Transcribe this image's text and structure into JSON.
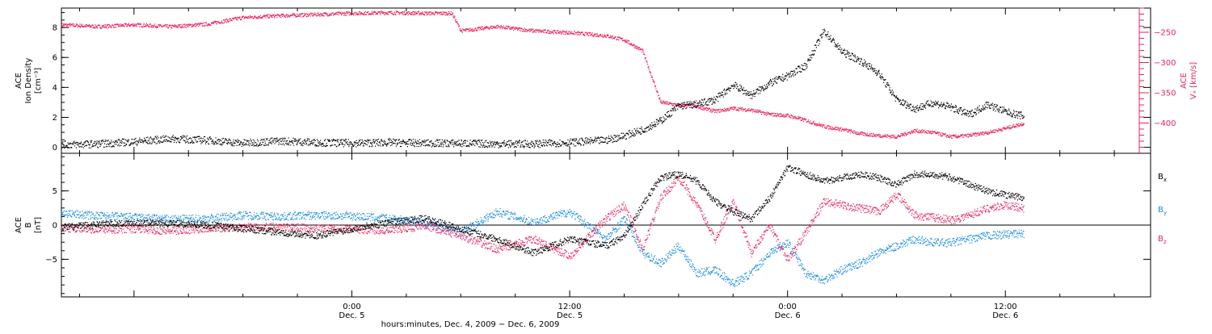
{
  "colors": {
    "black": "#000000",
    "pink": "#e8245c",
    "blue": "#1a8ce0"
  },
  "chart_data": {
    "type": "scatter",
    "xlabel": "hours:minutes, Dec.  4, 2009  −  Dec.  6, 2009",
    "x_range_hours": [
      -16,
      44
    ],
    "x_ticks": [
      {
        "hours": 0,
        "time": "0:00",
        "date": "Dec. 5"
      },
      {
        "hours": 12,
        "time": "12:00",
        "date": "Dec. 5"
      },
      {
        "hours": 24,
        "time": "0:00",
        "date": "Dec. 6"
      },
      {
        "hours": 36,
        "time": "12:00",
        "date": "Dec. 6"
      }
    ],
    "top_panel": {
      "left_axis": {
        "label_lines": [
          "ACE",
          "Ion Density",
          "[cm⁻³]"
        ],
        "ylim": [
          -0.4,
          9.3
        ],
        "ticks": [
          0,
          2,
          4,
          6,
          8
        ],
        "tick_labels": [
          "0",
          "2",
          "4",
          "6",
          "8"
        ]
      },
      "right_axis": {
        "label_lines": [
          "ACE",
          "Vₓ [km/s]"
        ],
        "ylim": [
          -450,
          -210
        ],
        "ticks": [
          -400,
          -350,
          -300,
          -250
        ],
        "tick_labels": [
          "−400",
          "−350",
          "−300",
          "−250"
        ]
      },
      "series": [
        {
          "name": "",
          "axis": "left",
          "color": "#000000",
          "x": [
            -16,
            -14,
            -12,
            -10,
            -8,
            -6,
            -4,
            -2,
            0,
            2,
            4,
            6,
            8,
            10,
            12,
            14,
            15,
            16,
            17,
            18,
            19,
            20,
            21,
            22,
            23,
            24,
            25,
            26,
            27,
            28,
            29,
            30,
            31,
            32,
            33,
            34,
            35,
            36,
            37
          ],
          "y": [
            0.2,
            0.25,
            0.4,
            0.6,
            0.5,
            0.3,
            0.45,
            0.35,
            0.3,
            0.35,
            0.3,
            0.3,
            0.25,
            0.25,
            0.35,
            0.5,
            0.8,
            1.2,
            1.8,
            2.8,
            2.9,
            3.2,
            4.2,
            3.5,
            4.3,
            4.8,
            5.5,
            7.8,
            6.4,
            5.8,
            5.0,
            3.2,
            2.6,
            3.0,
            2.7,
            2.2,
            2.9,
            2.4,
            2.1
          ]
        },
        {
          "name": "",
          "axis": "right",
          "color": "#e8245c",
          "x": [
            -16,
            -14,
            -12,
            -10,
            -8,
            -6,
            -4,
            -2,
            0,
            2,
            4,
            5.5,
            6,
            8,
            10,
            12,
            14,
            15,
            16,
            17,
            18,
            19,
            20,
            21,
            22,
            23,
            24,
            25,
            26,
            27,
            28,
            29,
            30,
            31,
            32,
            33,
            34,
            35,
            36,
            37
          ],
          "y": [
            -237,
            -240,
            -237,
            -240,
            -236,
            -225,
            -222,
            -220,
            -218,
            -217,
            -218,
            -218,
            -247,
            -240,
            -247,
            -250,
            -255,
            -262,
            -280,
            -365,
            -370,
            -372,
            -380,
            -375,
            -378,
            -385,
            -387,
            -395,
            -405,
            -410,
            -417,
            -420,
            -422,
            -412,
            -415,
            -422,
            -420,
            -415,
            -408,
            -400
          ]
        }
      ]
    },
    "bottom_panel": {
      "left_axis": {
        "label_lines": [
          "ACE",
          "B",
          "[nT]"
        ],
        "ylim": [
          -10.5,
          10.5
        ],
        "ticks": [
          -5,
          0,
          5
        ],
        "tick_labels": [
          "−5",
          "0",
          "5"
        ]
      },
      "series": [
        {
          "name": "Bx",
          "color": "#000000",
          "x": [
            -16,
            -14,
            -12,
            -10,
            -8,
            -6,
            -4,
            -2,
            0,
            2,
            4,
            6,
            8,
            10,
            12,
            14,
            15,
            16,
            17,
            18,
            19,
            20,
            21,
            22,
            23,
            24,
            25,
            26,
            27,
            28,
            29,
            30,
            31,
            32,
            33,
            34,
            35,
            36,
            37
          ],
          "y": [
            -0.3,
            0.2,
            0.4,
            0.3,
            0.1,
            -0.5,
            -1.0,
            -1.5,
            -0.5,
            0.5,
            1.0,
            -0.5,
            -2.0,
            -4.0,
            -2.0,
            -3.0,
            -1.5,
            3.0,
            7.0,
            7.5,
            6.5,
            3.5,
            2.0,
            1.0,
            4.0,
            8.5,
            7.5,
            6.5,
            7.0,
            7.5,
            7.0,
            6.0,
            7.5,
            7.5,
            7.0,
            6.0,
            5.0,
            4.5,
            4.0
          ]
        },
        {
          "name": "By",
          "color": "#1a8ce0",
          "x": [
            -16,
            -14,
            -12,
            -10,
            -8,
            -6,
            -4,
            -2,
            0,
            2,
            4,
            6,
            8,
            10,
            12,
            14,
            15,
            16,
            17,
            18,
            19,
            20,
            21,
            22,
            23,
            24,
            25,
            26,
            27,
            28,
            29,
            30,
            31,
            32,
            33,
            34,
            35,
            36,
            37
          ],
          "y": [
            1.8,
            1.4,
            1.2,
            0.9,
            1.0,
            1.5,
            1.3,
            1.5,
            1.4,
            1.0,
            0.5,
            -1.0,
            2.0,
            0.5,
            2.0,
            -2.0,
            1.0,
            -4.0,
            -5.5,
            -3.0,
            -7.0,
            -6.5,
            -8.5,
            -7.0,
            -4.0,
            -2.5,
            -7.0,
            -8.0,
            -6.5,
            -5.5,
            -4.0,
            -3.0,
            -2.0,
            -2.5,
            -2.5,
            -2.0,
            -1.5,
            -1.3,
            -1.2
          ]
        },
        {
          "name": "Bz",
          "color": "#e8245c",
          "x": [
            -16,
            -14,
            -12,
            -10,
            -8,
            -6,
            -4,
            -2,
            0,
            2,
            4,
            6,
            8,
            10,
            12,
            14,
            15,
            16,
            17,
            18,
            19,
            20,
            21,
            22,
            23,
            24,
            25,
            26,
            27,
            28,
            29,
            30,
            31,
            32,
            33,
            34,
            35,
            36,
            37
          ],
          "y": [
            -0.3,
            -0.6,
            -0.5,
            -0.8,
            -0.4,
            -0.3,
            -0.2,
            -0.4,
            -0.5,
            -0.8,
            0.0,
            -1.5,
            -3.5,
            -2.0,
            -4.5,
            1.0,
            3.0,
            -3.5,
            4.0,
            7.0,
            3.0,
            -2.0,
            3.5,
            -4.0,
            0.0,
            -5.0,
            -1.0,
            3.5,
            3.0,
            2.5,
            2.0,
            4.5,
            1.5,
            1.2,
            0.8,
            1.5,
            2.5,
            3.0,
            2.5
          ]
        }
      ],
      "legend": [
        {
          "label": "B",
          "sub": "x",
          "color": "#000000"
        },
        {
          "label": "B",
          "sub": "y",
          "color": "#1a8ce0"
        },
        {
          "label": "B",
          "sub": "z",
          "color": "#e8245c"
        }
      ],
      "legend_placement": "right"
    },
    "grid": false
  }
}
